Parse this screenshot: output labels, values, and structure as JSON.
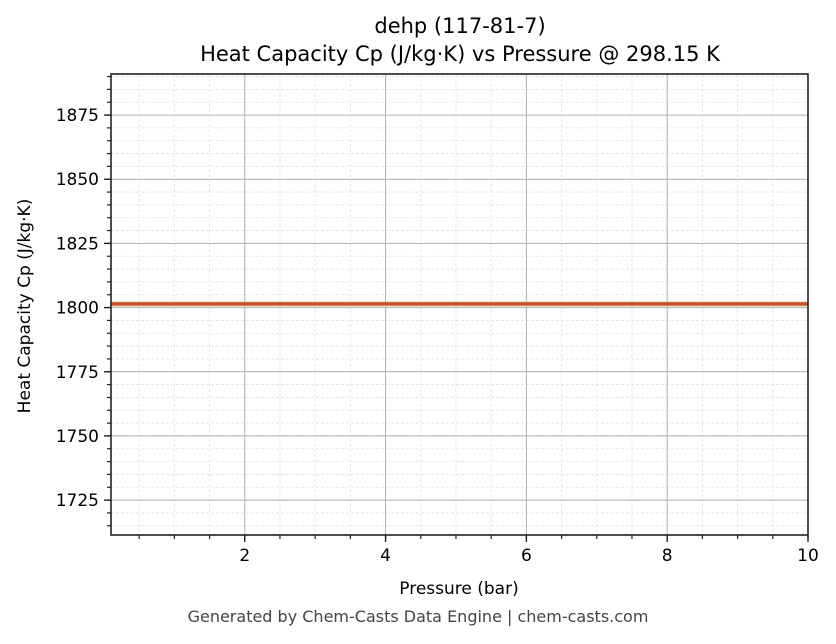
{
  "chart_data": {
    "type": "line",
    "title": "dehp (117-81-7)",
    "subtitle": "Heat Capacity Cp (J/kg·K) vs Pressure @ 298.15 K",
    "xlabel": "Pressure (bar)",
    "ylabel": "Heat Capacity Cp (J/kg·K)",
    "xlim": [
      0.1,
      10
    ],
    "ylim": [
      1711.4,
      1891
    ],
    "x_ticks": [
      2,
      4,
      6,
      8,
      10
    ],
    "x_tick_labels": [
      "2",
      "4",
      "6",
      "8",
      "10"
    ],
    "x_minor_step": 0.5,
    "y_ticks": [
      1725,
      1750,
      1775,
      1800,
      1825,
      1850,
      1875
    ],
    "y_tick_labels": [
      "1725",
      "1750",
      "1775",
      "1800",
      "1825",
      "1850",
      "1875"
    ],
    "y_minor_step": 5,
    "grid": true,
    "legend": null,
    "series": [
      {
        "name": "Cp",
        "color": "#c8562a",
        "x": [
          0.1,
          10
        ],
        "values": [
          1801.4,
          1801.4
        ]
      }
    ]
  },
  "footer": "Generated by Chem-Casts Data Engine | chem-casts.com"
}
